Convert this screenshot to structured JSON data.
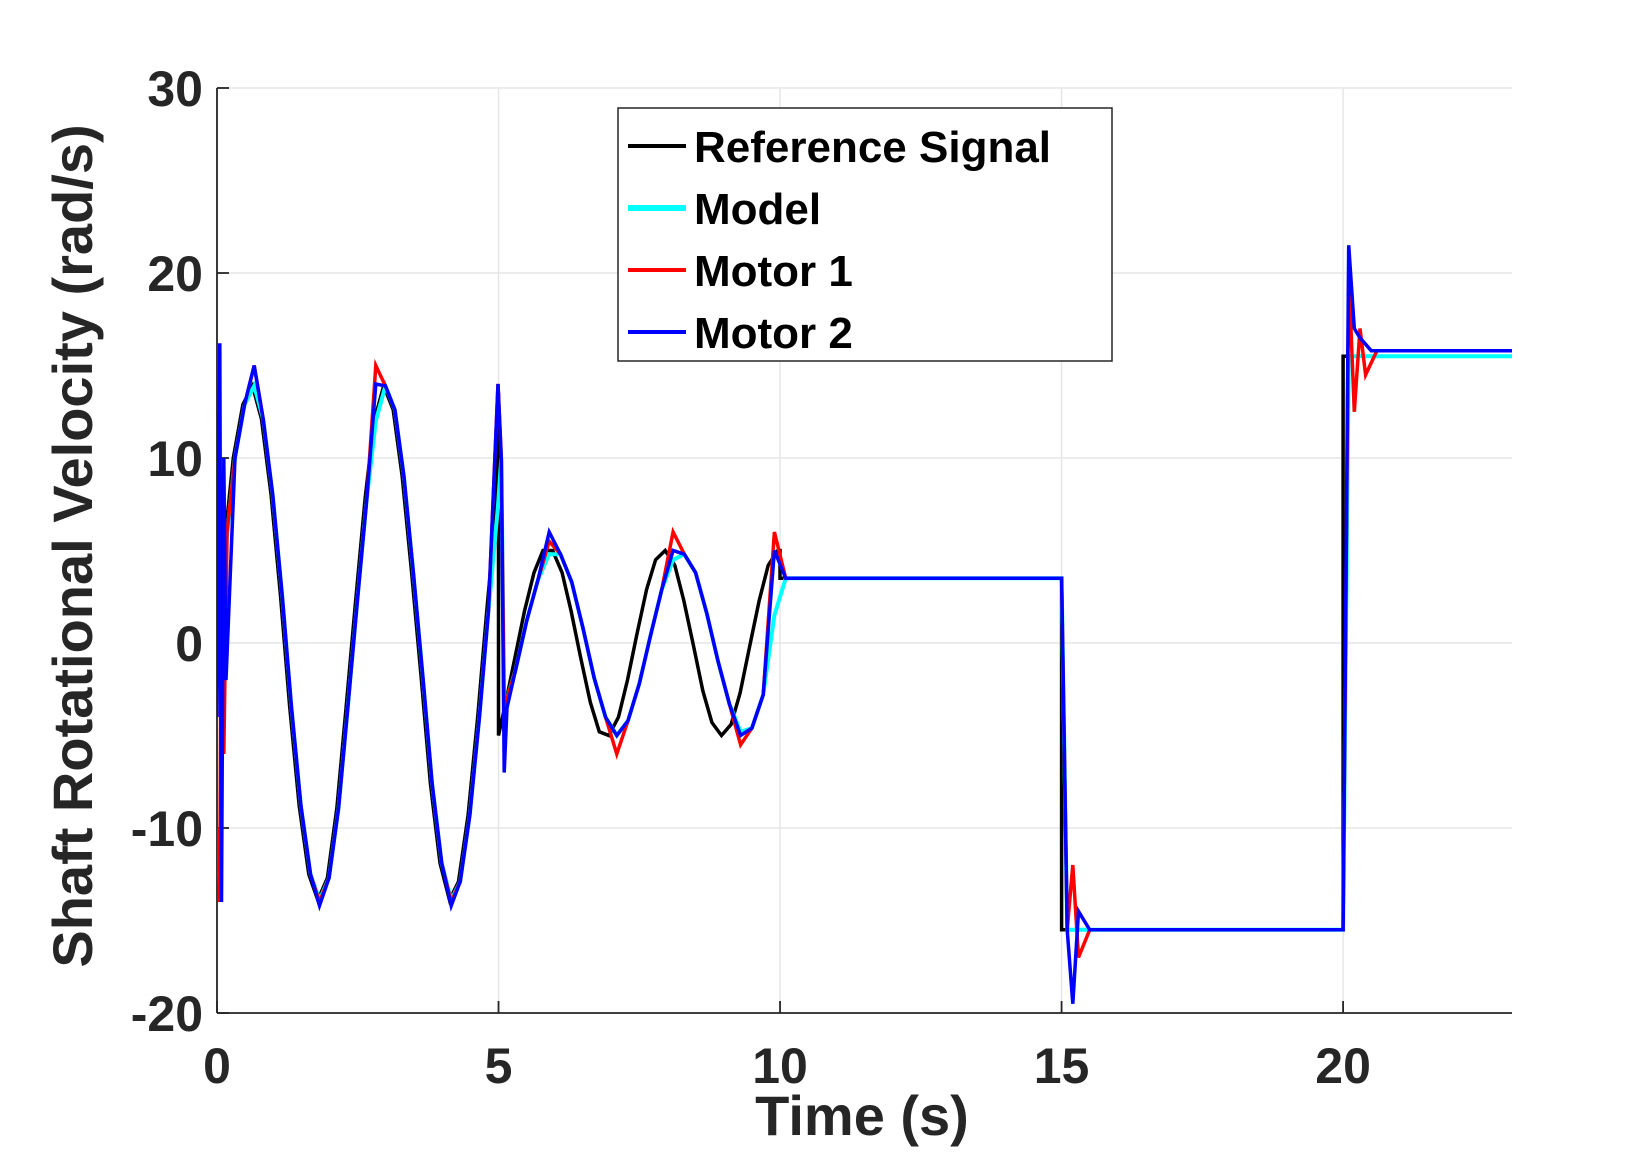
{
  "chart_data": {
    "type": "line",
    "xlabel": "Time (s)",
    "ylabel": "Shaft Rotational Velocity (rad/s)",
    "xlim": [
      0,
      23
    ],
    "ylim": [
      -20,
      30
    ],
    "xticks": [
      0,
      5,
      10,
      15,
      20
    ],
    "yticks": [
      -20,
      -10,
      0,
      10,
      20,
      30
    ],
    "xtick_labels": [
      "0",
      "5",
      "10",
      "15",
      "20"
    ],
    "ytick_labels": [
      "-20",
      "-10",
      "0",
      "10",
      "20",
      "30"
    ],
    "grid": true,
    "legend_placement": "top-center",
    "series": [
      {
        "name": "Reference Signal",
        "color": "#000000",
        "x": [
          0,
          0.12,
          0.29,
          0.46,
          0.63,
          0.79,
          0.96,
          1.13,
          1.29,
          1.46,
          1.63,
          1.79,
          1.96,
          2.13,
          2.29,
          2.46,
          2.63,
          2.79,
          2.96,
          3.13,
          3.29,
          3.46,
          3.63,
          3.79,
          3.96,
          4.13,
          4.29,
          4.46,
          4.63,
          4.79,
          4.96,
          5.0,
          5.0,
          5.13,
          5.29,
          5.46,
          5.63,
          5.79,
          5.96,
          6.13,
          6.29,
          6.46,
          6.63,
          6.79,
          6.96,
          7.13,
          7.29,
          7.46,
          7.63,
          7.79,
          7.96,
          8.13,
          8.29,
          8.46,
          8.63,
          8.79,
          8.96,
          9.13,
          9.29,
          9.46,
          9.63,
          9.79,
          9.96,
          10.0,
          10.0,
          15.0,
          15.0,
          20.0,
          20.0,
          23.0
        ],
        "y": [
          0,
          5.0,
          10.0,
          12.9,
          13.9,
          12.1,
          8.0,
          2.5,
          -3.4,
          -8.8,
          -12.5,
          -13.9,
          -12.7,
          -8.9,
          -3.6,
          2.2,
          7.8,
          12.0,
          13.9,
          12.6,
          9.0,
          3.7,
          -2.0,
          -7.6,
          -11.9,
          -13.9,
          -12.9,
          -9.3,
          -4.0,
          1.7,
          7.4,
          13.5,
          -5.0,
          -3.2,
          -0.8,
          1.7,
          3.8,
          5.0,
          5.0,
          3.8,
          1.7,
          -0.8,
          -3.2,
          -4.8,
          -5.0,
          -4.0,
          -2.0,
          0.5,
          2.9,
          4.5,
          5.0,
          4.2,
          2.3,
          -0.1,
          -2.6,
          -4.3,
          -5.0,
          -4.4,
          -2.7,
          -0.2,
          2.3,
          4.2,
          5.0,
          5.0,
          3.5,
          3.5,
          -15.5,
          -15.5,
          15.5,
          15.5
        ]
      },
      {
        "name": "Model",
        "color": "#00ffff",
        "x": [
          0,
          0.15,
          0.32,
          0.49,
          0.66,
          0.82,
          0.99,
          1.16,
          1.32,
          1.49,
          1.66,
          1.82,
          1.99,
          2.16,
          2.32,
          2.49,
          2.66,
          2.82,
          2.99,
          3.16,
          3.32,
          3.49,
          3.66,
          3.82,
          3.99,
          4.16,
          4.32,
          4.49,
          4.66,
          4.82,
          4.99,
          5.05,
          5.1,
          5.3,
          5.5,
          5.7,
          5.9,
          6.1,
          6.3,
          6.5,
          6.7,
          6.9,
          7.1,
          7.3,
          7.5,
          7.7,
          7.9,
          8.1,
          8.3,
          8.5,
          8.7,
          8.9,
          9.1,
          9.3,
          9.5,
          9.7,
          9.9,
          10.1,
          15.0,
          15.1,
          20.0,
          20.1,
          23.0
        ],
        "y": [
          0,
          5.0,
          10.0,
          12.9,
          13.9,
          12.1,
          8.0,
          2.5,
          -3.4,
          -8.8,
          -12.5,
          -13.9,
          -12.7,
          -8.9,
          -3.6,
          2.2,
          7.8,
          12.0,
          13.9,
          12.6,
          9.0,
          3.7,
          -2.0,
          -7.6,
          -11.9,
          -13.9,
          -12.9,
          -9.3,
          -4.0,
          1.7,
          7.4,
          10.0,
          -3.5,
          -1.5,
          1.2,
          3.4,
          4.8,
          4.8,
          3.3,
          0.8,
          -1.9,
          -4.0,
          -5.0,
          -4.2,
          -2.2,
          0.4,
          2.9,
          4.5,
          4.8,
          3.8,
          1.6,
          -1.0,
          -3.3,
          -4.8,
          -4.6,
          -2.8,
          1.5,
          3.5,
          3.5,
          -15.5,
          -15.5,
          15.5,
          15.5
        ]
      },
      {
        "name": "Motor 1",
        "color": "#ff0000",
        "x": [
          0,
          0.05,
          0.08,
          0.12,
          0.18,
          0.32,
          0.49,
          0.66,
          0.82,
          0.99,
          1.16,
          1.32,
          1.49,
          1.66,
          1.82,
          1.99,
          2.16,
          2.32,
          2.49,
          2.66,
          2.82,
          2.99,
          3.16,
          3.32,
          3.49,
          3.66,
          3.82,
          3.99,
          4.16,
          4.32,
          4.49,
          4.66,
          4.82,
          4.99,
          5.05,
          5.1,
          5.3,
          5.5,
          5.7,
          5.9,
          6.1,
          6.3,
          6.5,
          6.7,
          6.9,
          7.1,
          7.3,
          7.5,
          7.7,
          7.9,
          8.1,
          8.3,
          8.5,
          8.7,
          8.9,
          9.1,
          9.3,
          9.5,
          9.7,
          9.9,
          10.1,
          15.0,
          15.1,
          15.2,
          15.3,
          15.5,
          20.0,
          20.1,
          20.2,
          20.3,
          20.4,
          20.6,
          23.0
        ],
        "y": [
          -10,
          -14,
          8,
          -6,
          6,
          10.0,
          12.9,
          15.0,
          12.1,
          8.0,
          2.5,
          -3.4,
          -8.8,
          -12.5,
          -14.0,
          -12.7,
          -8.9,
          -3.6,
          2.2,
          7.8,
          15.0,
          13.9,
          12.6,
          9.0,
          3.7,
          -2.0,
          -7.6,
          -11.9,
          -14.0,
          -12.9,
          -9.3,
          -4.0,
          1.7,
          14.0,
          10.0,
          -3.5,
          -1.5,
          1.2,
          3.4,
          5.5,
          4.8,
          3.3,
          0.8,
          -1.9,
          -4.0,
          -6.0,
          -4.2,
          -2.2,
          0.4,
          2.9,
          6.0,
          4.8,
          3.8,
          1.6,
          -1.0,
          -3.3,
          -5.5,
          -4.6,
          -2.8,
          6.0,
          3.5,
          3.5,
          -15.5,
          -12.0,
          -17.0,
          -15.5,
          -15.5,
          20.0,
          12.5,
          17.0,
          14.5,
          15.8,
          15.8
        ]
      },
      {
        "name": "Motor 2",
        "color": "#0000ff",
        "x": [
          0,
          0.05,
          0.08,
          0.12,
          0.16,
          0.32,
          0.49,
          0.66,
          0.82,
          0.99,
          1.16,
          1.32,
          1.49,
          1.66,
          1.82,
          1.99,
          2.16,
          2.32,
          2.49,
          2.66,
          2.82,
          2.99,
          3.16,
          3.32,
          3.49,
          3.66,
          3.82,
          3.99,
          4.16,
          4.32,
          4.49,
          4.66,
          4.82,
          4.99,
          5.05,
          5.1,
          5.15,
          5.3,
          5.5,
          5.7,
          5.9,
          6.1,
          6.3,
          6.5,
          6.7,
          6.9,
          7.1,
          7.3,
          7.5,
          7.7,
          7.9,
          8.1,
          8.3,
          8.5,
          8.7,
          8.9,
          9.1,
          9.3,
          9.5,
          9.7,
          9.9,
          10.1,
          15.0,
          15.1,
          15.2,
          15.3,
          15.5,
          20.0,
          20.1,
          20.2,
          20.3,
          20.5,
          23.0
        ],
        "y": [
          -4,
          16.2,
          -14,
          10,
          -2,
          10.0,
          12.9,
          15.0,
          12.1,
          8.0,
          2.5,
          -3.4,
          -8.8,
          -12.5,
          -14.2,
          -12.7,
          -8.9,
          -3.6,
          2.2,
          7.8,
          14.0,
          13.9,
          12.6,
          9.0,
          3.7,
          -2.0,
          -7.6,
          -11.9,
          -14.2,
          -12.9,
          -9.3,
          -4.0,
          1.7,
          14.0,
          10.0,
          -7.0,
          -3.5,
          -1.5,
          1.2,
          3.4,
          6.0,
          4.8,
          3.3,
          0.8,
          -1.9,
          -4.0,
          -5.0,
          -4.2,
          -2.2,
          0.4,
          2.9,
          5.0,
          4.8,
          3.8,
          1.6,
          -1.0,
          -3.3,
          -5.0,
          -4.6,
          -2.8,
          5.0,
          3.5,
          3.5,
          -15.5,
          -19.5,
          -14.5,
          -15.5,
          -15.5,
          21.5,
          17.0,
          16.5,
          15.8,
          15.8
        ]
      }
    ]
  }
}
